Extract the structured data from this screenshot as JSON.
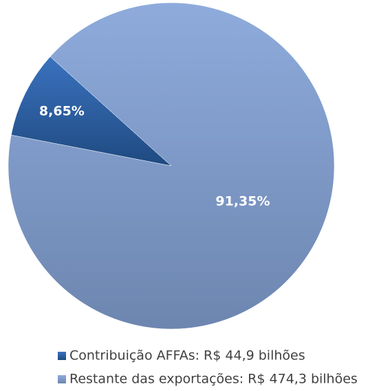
{
  "chart_data": {
    "type": "pie",
    "categories": [
      "Contribuição AFFAs: R$ 44,9 bilhões",
      "Restante das exportações: R$ 474,3 bilhões"
    ],
    "values": [
      8.65,
      91.35
    ],
    "value_labels": [
      "8,65%",
      "91,35%"
    ],
    "colors": [
      "#2f62a8",
      "#8ba8d8"
    ],
    "legend": "bottom"
  }
}
